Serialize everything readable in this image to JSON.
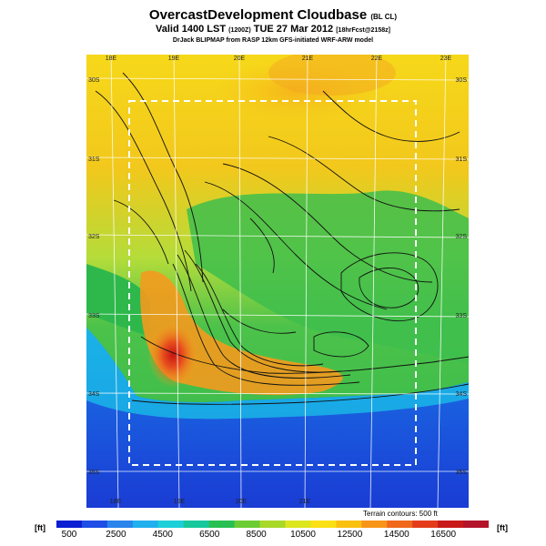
{
  "header": {
    "title": "OvercastDevelopment Cloudbase",
    "title_suffix": "(BL CL)",
    "valid_prefix": "Valid 1400 LST",
    "valid_zulu": "(1200Z)",
    "valid_date": "TUE 27 Mar 2012",
    "valid_forecast": "[18hrFcst@2158z]",
    "credit": "DrJack BLIPMAP from RASP 12km GFS-initiated WRF-ARW model"
  },
  "map": {
    "longitude_labels": [
      "18E",
      "19E",
      "20E",
      "21E",
      "22E",
      "23E"
    ],
    "latitude_labels_left": [
      "30S",
      "31S",
      "32S",
      "33S",
      "34S",
      "35S"
    ],
    "latitude_labels_right": [
      "30S",
      "31S",
      "32S",
      "33S",
      "34S",
      "35S"
    ],
    "inner_domain_line": "dashed-white",
    "field_colors": {
      "sea": "#1a4ad8",
      "coast": "#18b4e8",
      "low": "#5ec84a",
      "mid": "#b8dc3a",
      "high": "#f6d21a",
      "orange": "#f49a1e",
      "peak": "#d01818"
    }
  },
  "contours_note": "Terrain contours: 500 ft",
  "colorbar": {
    "unit_left": "[ft]",
    "unit_right": "[ft]",
    "labels": [
      "500",
      "2500",
      "4500",
      "6500",
      "8500",
      "10500",
      "12500",
      "14500",
      "16500"
    ],
    "colors": [
      "#0a1ed2",
      "#1f4ee6",
      "#2a84ec",
      "#20b0ee",
      "#1ccfd8",
      "#16c89c",
      "#28c052",
      "#6ccc34",
      "#a8d828",
      "#dce61c",
      "#fae014",
      "#fac010",
      "#f89418",
      "#f0681c",
      "#e43c1a",
      "#c81818",
      "#b4142a"
    ]
  }
}
